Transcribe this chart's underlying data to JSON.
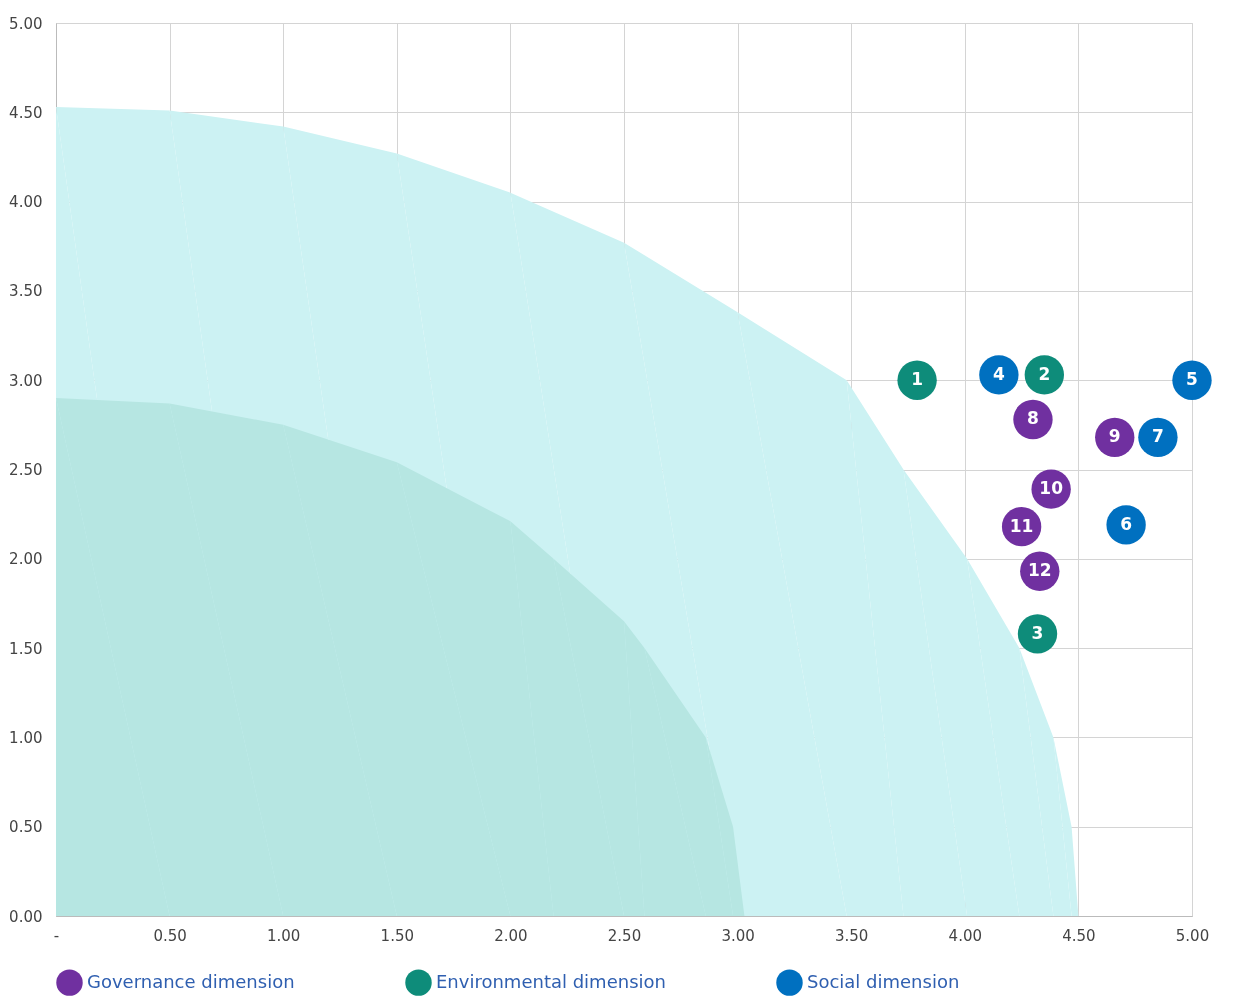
{
  "chart_data": {
    "type": "scatter",
    "xlim": [
      0,
      5
    ],
    "ylim": [
      0,
      5
    ],
    "xticks": [
      {
        "value": 0,
        "label": "-"
      },
      {
        "value": 0.5,
        "label": "0.50"
      },
      {
        "value": 1,
        "label": "1.00"
      },
      {
        "value": 1.5,
        "label": "1.50"
      },
      {
        "value": 2,
        "label": "2.00"
      },
      {
        "value": 2.5,
        "label": "2.50"
      },
      {
        "value": 3,
        "label": "3.00"
      },
      {
        "value": 3.5,
        "label": "3.50"
      },
      {
        "value": 4,
        "label": "4.00"
      },
      {
        "value": 4.5,
        "label": "4.50"
      },
      {
        "value": 5,
        "label": "5.00"
      }
    ],
    "yticks": [
      {
        "value": 0,
        "label": "0.00"
      },
      {
        "value": 0.5,
        "label": "0.50"
      },
      {
        "value": 1,
        "label": "1.00"
      },
      {
        "value": 1.5,
        "label": "1.50"
      },
      {
        "value": 2,
        "label": "2.00"
      },
      {
        "value": 2.5,
        "label": "2.50"
      },
      {
        "value": 3,
        "label": "3.00"
      },
      {
        "value": 3.5,
        "label": "3.50"
      },
      {
        "value": 4,
        "label": "4.00"
      },
      {
        "value": 4.5,
        "label": "4.50"
      },
      {
        "value": 5,
        "label": "5.00"
      }
    ],
    "grid": true,
    "legend": "bottom",
    "marker": "circle",
    "annotations": [
      {
        "text": "1",
        "x": 3.79,
        "y": 3.0
      },
      {
        "text": "2",
        "x": 4.35,
        "y": 3.03
      },
      {
        "text": "3",
        "x": 4.32,
        "y": 1.58
      },
      {
        "text": "4",
        "x": 4.15,
        "y": 3.03
      },
      {
        "text": "5",
        "x": 5.0,
        "y": 3.0
      },
      {
        "text": "6",
        "x": 4.71,
        "y": 2.19
      },
      {
        "text": "7",
        "x": 4.85,
        "y": 2.68
      },
      {
        "text": "8",
        "x": 4.3,
        "y": 2.78
      },
      {
        "text": "9",
        "x": 4.66,
        "y": 2.68
      },
      {
        "text": "10",
        "x": 4.38,
        "y": 2.39
      },
      {
        "text": "11",
        "x": 4.25,
        "y": 2.18
      },
      {
        "text": "12",
        "x": 4.33,
        "y": 1.93
      }
    ],
    "series": [
      {
        "type": "area",
        "marker": "none",
        "color": "#ccf2f3",
        "x": [
          0,
          0.5,
          1,
          1.5,
          2,
          2.5,
          3,
          3.48,
          3.73,
          4.01,
          4.24,
          4.39,
          4.47,
          4.5
        ],
        "values": [
          4.53,
          4.51,
          4.42,
          4.27,
          4.05,
          3.77,
          3.38,
          3.0,
          2.5,
          2.0,
          1.5,
          1.0,
          0.5,
          0
        ]
      },
      {
        "type": "area",
        "marker": "none",
        "color": "#b6e6e2",
        "x": [
          0,
          0.5,
          1,
          1.5,
          2,
          2.19,
          2.5,
          2.59,
          2.86,
          2.98,
          3.03
        ],
        "values": [
          2.9,
          2.87,
          2.75,
          2.54,
          2.21,
          2.0,
          1.65,
          1.5,
          1.0,
          0.5,
          0
        ]
      },
      {
        "name": "Governance dimension",
        "color": "#7030a0",
        "x": [
          4.3,
          4.66,
          4.38,
          4.25,
          4.33
        ],
        "values": [
          2.78,
          2.68,
          2.39,
          2.18,
          1.93
        ]
      },
      {
        "name": "Environmental dimension",
        "color": "#0e8c7a",
        "x": [
          3.79,
          4.35,
          4.32
        ],
        "values": [
          3.0,
          3.03,
          1.58
        ]
      },
      {
        "name": "Social dimension",
        "color": "#0070c0",
        "x": [
          4.15,
          5.0,
          4.71,
          4.85
        ],
        "values": [
          3.03,
          3.0,
          2.19,
          2.68
        ]
      }
    ]
  }
}
